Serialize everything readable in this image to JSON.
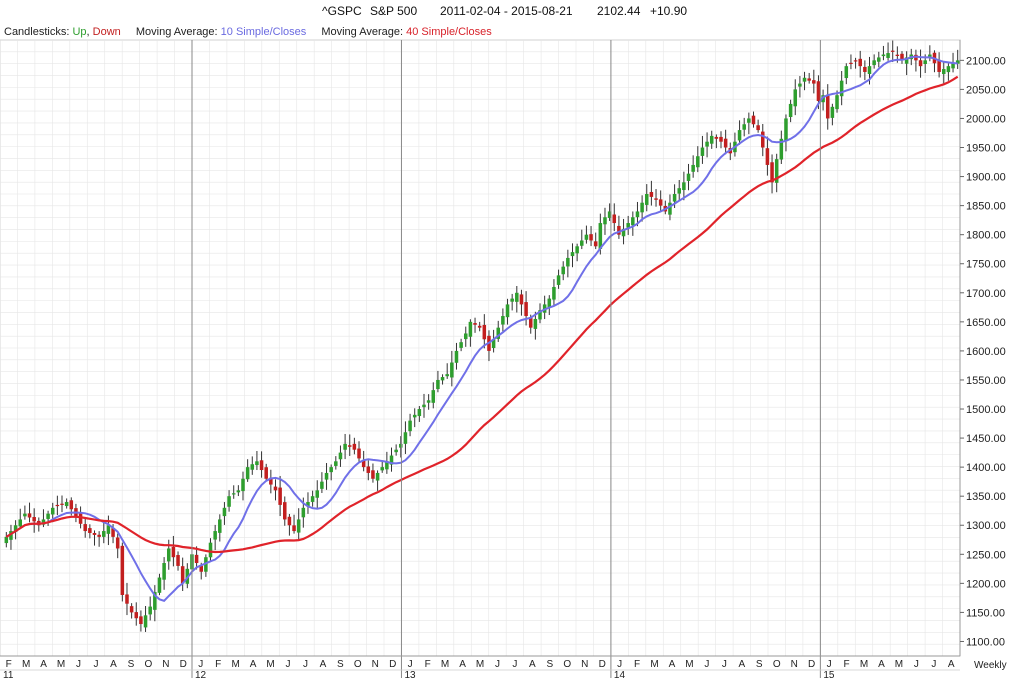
{
  "header": {
    "symbol": "^GSPC",
    "name": "S&P 500",
    "range": "2011-02-04 - 2015-08-21",
    "last": "2102.44",
    "change": "+10.90"
  },
  "legend": {
    "candles_label": "Candlesticks:",
    "up_label": "Up",
    "sep": ",",
    "down_label": "Down",
    "ma1_label": "Moving Average:",
    "ma1_value": "10 Simple/Closes",
    "ma2_label": "Moving Average:",
    "ma2_value": "40 Simple/Closes"
  },
  "colors": {
    "up": "#2e9e2e",
    "down": "#c21f1f",
    "ma10": "#7070e8",
    "ma40": "#e0232a",
    "grid": "#e6e6e6"
  },
  "chart_data": {
    "type": "candlestick",
    "interval_label": "Weekly",
    "ylim": [
      1075,
      2135
    ],
    "y_ticks": [
      1100,
      1150,
      1200,
      1250,
      1300,
      1350,
      1400,
      1450,
      1500,
      1550,
      1600,
      1650,
      1700,
      1750,
      1800,
      1850,
      1900,
      1950,
      2000,
      2050,
      2100
    ],
    "y_tick_labels": [
      "1100.00",
      "1150.00",
      "1200.00",
      "1250.00",
      "1300.00",
      "1350.00",
      "1400.00",
      "1450.00",
      "1500.00",
      "1550.00",
      "1600.00",
      "1650.00",
      "1700.00",
      "1750.00",
      "1800.00",
      "1850.00",
      "1900.00",
      "1950.00",
      "2000.00",
      "2050.00",
      "2100.00"
    ],
    "month_labels": [
      "F",
      "M",
      "A",
      "M",
      "J",
      "J",
      "A",
      "S",
      "O",
      "N",
      "D",
      "J",
      "F",
      "M",
      "A",
      "M",
      "J",
      "J",
      "A",
      "S",
      "O",
      "N",
      "D",
      "J",
      "F",
      "M",
      "A",
      "M",
      "J",
      "J",
      "A",
      "S",
      "O",
      "N",
      "D",
      "J",
      "F",
      "M",
      "A",
      "M",
      "J",
      "J",
      "A",
      "S",
      "O",
      "N",
      "D",
      "J",
      "F",
      "M",
      "A",
      "M",
      "J",
      "J",
      "A"
    ],
    "year_labels": [
      "11",
      "12",
      "13",
      "14",
      "15"
    ],
    "year_month_index": [
      0,
      11,
      23,
      35,
      47
    ],
    "anchors": [
      [
        0,
        1280
      ],
      [
        4,
        1320
      ],
      [
        7,
        1300
      ],
      [
        10,
        1330
      ],
      [
        13,
        1340
      ],
      [
        17,
        1290
      ],
      [
        20,
        1280
      ],
      [
        22,
        1300
      ],
      [
        24,
        1260
      ],
      [
        25,
        1180
      ],
      [
        27,
        1150
      ],
      [
        29,
        1130
      ],
      [
        31,
        1160
      ],
      [
        33,
        1210
      ],
      [
        35,
        1260
      ],
      [
        37,
        1230
      ],
      [
        38,
        1200
      ],
      [
        40,
        1250
      ],
      [
        42,
        1220
      ],
      [
        44,
        1270
      ],
      [
        46,
        1310
      ],
      [
        48,
        1350
      ],
      [
        50,
        1360
      ],
      [
        52,
        1400
      ],
      [
        54,
        1410
      ],
      [
        56,
        1380
      ],
      [
        58,
        1360
      ],
      [
        60,
        1310
      ],
      [
        62,
        1290
      ],
      [
        64,
        1330
      ],
      [
        67,
        1360
      ],
      [
        69,
        1390
      ],
      [
        71,
        1410
      ],
      [
        73,
        1440
      ],
      [
        75,
        1430
      ],
      [
        77,
        1400
      ],
      [
        79,
        1380
      ],
      [
        81,
        1400
      ],
      [
        83,
        1420
      ],
      [
        85,
        1440
      ],
      [
        87,
        1480
      ],
      [
        89,
        1500
      ],
      [
        91,
        1515
      ],
      [
        93,
        1550
      ],
      [
        95,
        1560
      ],
      [
        97,
        1600
      ],
      [
        99,
        1630
      ],
      [
        100,
        1650
      ],
      [
        102,
        1640
      ],
      [
        104,
        1600
      ],
      [
        106,
        1640
      ],
      [
        108,
        1680
      ],
      [
        110,
        1700
      ],
      [
        112,
        1660
      ],
      [
        113,
        1640
      ],
      [
        115,
        1670
      ],
      [
        117,
        1690
      ],
      [
        119,
        1730
      ],
      [
        121,
        1760
      ],
      [
        123,
        1780
      ],
      [
        125,
        1800
      ],
      [
        127,
        1780
      ],
      [
        128,
        1820
      ],
      [
        130,
        1840
      ],
      [
        132,
        1800
      ],
      [
        134,
        1820
      ],
      [
        136,
        1840
      ],
      [
        138,
        1870
      ],
      [
        140,
        1860
      ],
      [
        142,
        1840
      ],
      [
        144,
        1870
      ],
      [
        146,
        1890
      ],
      [
        148,
        1920
      ],
      [
        150,
        1950
      ],
      [
        152,
        1970
      ],
      [
        154,
        1960
      ],
      [
        156,
        1940
      ],
      [
        158,
        1980
      ],
      [
        160,
        2000
      ],
      [
        162,
        1980
      ],
      [
        164,
        1920
      ],
      [
        165,
        1890
      ],
      [
        166,
        1930
      ],
      [
        168,
        2000
      ],
      [
        170,
        2050
      ],
      [
        172,
        2070
      ],
      [
        174,
        2060
      ],
      [
        175,
        2030
      ],
      [
        176,
        2040
      ],
      [
        177,
        2000
      ],
      [
        179,
        2040
      ],
      [
        181,
        2090
      ],
      [
        183,
        2100
      ],
      [
        185,
        2080
      ],
      [
        187,
        2100
      ],
      [
        189,
        2110
      ],
      [
        191,
        2115
      ],
      [
        193,
        2100
      ],
      [
        195,
        2110
      ],
      [
        197,
        2090
      ],
      [
        199,
        2110
      ],
      [
        201,
        2080
      ],
      [
        203,
        2090
      ],
      [
        205,
        2100
      ]
    ]
  }
}
